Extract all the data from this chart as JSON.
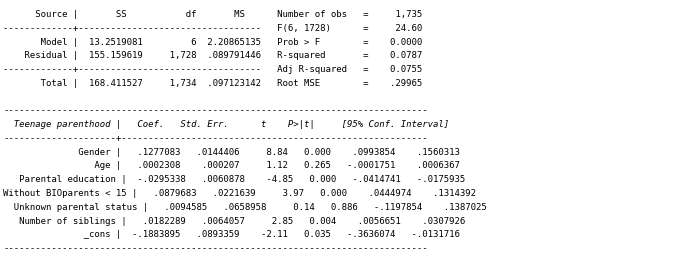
{
  "bg_color": "#ffffff",
  "font_family": "monospace",
  "lines": [
    [
      "      Source |       SS           df       MS      Number of obs   =     1,735",
      "normal"
    ],
    [
      "-------------+----------------------------------   F(6, 1728)      =     24.60",
      "normal"
    ],
    [
      "       Model |  13.2519081         6  2.20865135   Prob > F        =    0.0000",
      "normal"
    ],
    [
      "    Residual |  155.159619     1,728  .089791446   R-squared       =    0.0787",
      "normal"
    ],
    [
      "-------------+----------------------------------   Adj R-squared   =    0.0755",
      "normal"
    ],
    [
      "       Total |  168.411527     1,734  .097123142   Root MSE        =    .29965",
      "normal"
    ],
    [
      "",
      "normal"
    ],
    [
      "-------------------------------------------------------------------------------",
      "normal"
    ],
    [
      "  Teenage parenthood |   Coef.   Std. Err.      t    P>|t|     [95% Conf. Interval]",
      "italic"
    ],
    [
      "---------------------+---------------------------------------------------------",
      "normal"
    ],
    [
      "              Gender |   .1277083   .0144406     8.84   0.000    .0993854    .1560313",
      "normal"
    ],
    [
      "                 Age |   .0002308    .000207     1.12   0.265   -.0001751    .0006367",
      "normal"
    ],
    [
      "   Parental education |  -.0295338   .0060878    -4.85   0.000   -.0414741   -.0175935",
      "normal"
    ],
    [
      "Without BIOparents < 15 |   .0879683   .0221639     3.97   0.000    .0444974    .1314392",
      "normal"
    ],
    [
      "  Unknown parental status |   .0094585   .0658958     0.14   0.886   -.1197854    .1387025",
      "normal"
    ],
    [
      "   Number of siblings |   .0182289   .0064057     2.85   0.004    .0056651    .0307926",
      "normal"
    ],
    [
      "               _cons |  -.1883895   .0893359    -2.11   0.035   -.3636074   -.0131716",
      "normal"
    ],
    [
      "-------------------------------------------------------------------------------",
      "normal"
    ]
  ]
}
